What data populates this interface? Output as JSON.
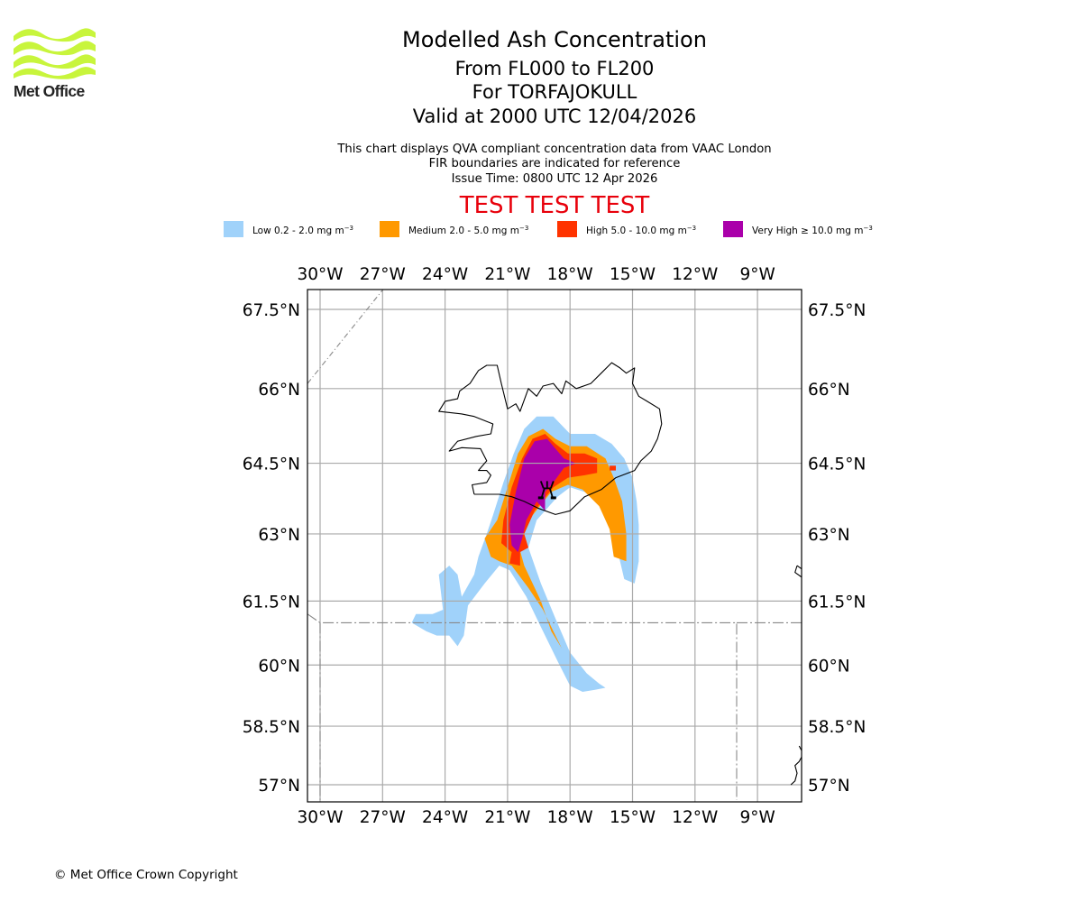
{
  "logo": {
    "name": "Met Office",
    "color": "#c8f53c"
  },
  "header": {
    "title": "Modelled Ash Concentration",
    "flight_levels": "From FL000 to FL200",
    "volcano": "For TORFAJOKULL",
    "valid_time": "Valid at 2000 UTC 12/04/2026",
    "note_1": "This chart displays QVA compliant concentration data from VAAC London",
    "note_2": "FIR boundaries are indicated for reference",
    "issue_time": "Issue Time: 0800 UTC 12 Apr 2026",
    "test_banner": "TEST TEST TEST",
    "test_color": "#e8000b"
  },
  "legend": [
    {
      "label": "Low 0.2 - 2.0 mg m",
      "unit_exp": "−3",
      "color": "#a0d2fa"
    },
    {
      "label": "Medium 2.0 - 5.0 mg m",
      "unit_exp": "−3",
      "color": "#ff9900"
    },
    {
      "label": "High 5.0 - 10.0 mg m",
      "unit_exp": "−3",
      "color": "#ff3300"
    },
    {
      "label": "Very High  ≥  10.0 mg m",
      "unit_exp": "−3",
      "color": "#aa00aa"
    }
  ],
  "chart_data": {
    "type": "map",
    "title": "Modelled Ash Concentration",
    "projection": "mercator",
    "extent": {
      "lon": [
        -30.6,
        -6.9
      ],
      "lat": [
        56.6,
        67.9
      ]
    },
    "lon_ticks": [
      -30,
      -27,
      -24,
      -21,
      -18,
      -15,
      -12,
      -9
    ],
    "lon_tick_labels": [
      "30°W",
      "27°W",
      "24°W",
      "21°W",
      "18°W",
      "15°W",
      "12°W",
      "9°W"
    ],
    "lat_ticks": [
      67.5,
      66,
      64.5,
      63,
      61.5,
      60,
      58.5,
      57
    ],
    "lat_tick_labels": [
      "67.5°N",
      "66°N",
      "64.5°N",
      "63°N",
      "61.5°N",
      "60°N",
      "58.5°N",
      "57°N"
    ],
    "grid": true,
    "volcano": {
      "name": "TORFAJOKULL",
      "lon": -19.1,
      "lat": 63.9
    },
    "fir_boundaries": [
      {
        "name": "diagonal-nw",
        "points": [
          [
            -30.6,
            66.1
          ],
          [
            -26.9,
            67.9
          ]
        ]
      },
      {
        "name": "southern-box",
        "points": [
          [
            -30.6,
            61.2
          ],
          [
            -30.0,
            61.0
          ],
          [
            -10.0,
            61.0
          ],
          [
            -10.0,
            56.6
          ]
        ]
      },
      {
        "name": "southern-box-west",
        "points": [
          [
            -30.0,
            61.0
          ],
          [
            -30.0,
            56.6
          ]
        ]
      },
      {
        "name": "east-line",
        "points": [
          [
            -10.0,
            61.0
          ],
          [
            -6.9,
            61.0
          ]
        ]
      }
    ],
    "ash_layers": [
      {
        "level": "Low",
        "range": "0.2 - 2.0",
        "polygons": [
          [
            [
              -21.7,
              63.4
            ],
            [
              -21.2,
              64.1
            ],
            [
              -20.7,
              64.7
            ],
            [
              -20.2,
              65.2
            ],
            [
              -19.6,
              65.45
            ],
            [
              -18.8,
              65.45
            ],
            [
              -18.0,
              65.1
            ],
            [
              -16.8,
              65.1
            ],
            [
              -16.0,
              64.9
            ],
            [
              -15.4,
              64.6
            ],
            [
              -15.0,
              64.2
            ],
            [
              -14.8,
              63.7
            ],
            [
              -14.7,
              63.2
            ],
            [
              -14.7,
              62.4
            ],
            [
              -14.9,
              61.9
            ],
            [
              -15.4,
              62.0
            ],
            [
              -15.7,
              62.6
            ],
            [
              -16.0,
              63.1
            ],
            [
              -16.5,
              63.6
            ],
            [
              -17.3,
              63.9
            ],
            [
              -18.0,
              64.0
            ],
            [
              -18.6,
              63.8
            ],
            [
              -19.6,
              63.3
            ],
            [
              -20.0,
              62.7
            ],
            [
              -19.4,
              61.9
            ],
            [
              -18.7,
              61.1
            ],
            [
              -18.0,
              60.3
            ],
            [
              -17.2,
              59.8
            ],
            [
              -16.6,
              59.55
            ],
            [
              -16.3,
              59.45
            ],
            [
              -16.8,
              59.4
            ],
            [
              -17.4,
              59.35
            ],
            [
              -18.0,
              59.5
            ],
            [
              -18.6,
              60.1
            ],
            [
              -19.4,
              60.9
            ],
            [
              -20.1,
              61.6
            ],
            [
              -20.9,
              62.2
            ],
            [
              -21.4,
              62.3
            ],
            [
              -22.1,
              61.9
            ],
            [
              -22.9,
              61.4
            ],
            [
              -23.1,
              60.7
            ],
            [
              -23.4,
              60.45
            ],
            [
              -23.8,
              60.7
            ],
            [
              -24.4,
              60.7
            ],
            [
              -24.9,
              60.8
            ],
            [
              -25.6,
              61.0
            ],
            [
              -25.4,
              61.2
            ],
            [
              -24.6,
              61.2
            ],
            [
              -24.1,
              61.3
            ],
            [
              -24.3,
              62.1
            ],
            [
              -23.8,
              62.3
            ],
            [
              -23.4,
              62.1
            ],
            [
              -23.2,
              61.6
            ],
            [
              -22.6,
              62.1
            ],
            [
              -22.4,
              62.5
            ],
            [
              -22.0,
              63.0
            ]
          ]
        ]
      },
      {
        "level": "Medium",
        "range": "2.0 - 5.0",
        "polygons": [
          [
            [
              -21.5,
              63.3
            ],
            [
              -21.0,
              64.0
            ],
            [
              -20.5,
              64.7
            ],
            [
              -20.0,
              65.05
            ],
            [
              -19.3,
              65.2
            ],
            [
              -18.7,
              65.0
            ],
            [
              -18.0,
              64.85
            ],
            [
              -17.2,
              64.85
            ],
            [
              -16.3,
              64.6
            ],
            [
              -15.9,
              64.2
            ],
            [
              -15.5,
              63.7
            ],
            [
              -15.3,
              63.0
            ],
            [
              -15.3,
              62.4
            ],
            [
              -15.9,
              62.5
            ],
            [
              -16.1,
              63.1
            ],
            [
              -16.6,
              63.6
            ],
            [
              -17.4,
              63.95
            ],
            [
              -18.1,
              64.05
            ],
            [
              -18.9,
              63.9
            ],
            [
              -19.8,
              63.4
            ],
            [
              -20.5,
              62.8
            ],
            [
              -20.2,
              62.3
            ],
            [
              -19.4,
              61.5
            ],
            [
              -18.9,
              60.8
            ],
            [
              -18.4,
              60.4
            ],
            [
              -18.8,
              60.8
            ],
            [
              -19.3,
              61.3
            ],
            [
              -20.0,
              61.8
            ],
            [
              -20.8,
              62.3
            ],
            [
              -21.4,
              62.4
            ],
            [
              -21.8,
              62.5
            ],
            [
              -22.1,
              62.9
            ]
          ]
        ]
      },
      {
        "level": "High",
        "range": "5.0 - 10.0",
        "polygons": [
          [
            [
              -21.2,
              63.3
            ],
            [
              -20.8,
              64.0
            ],
            [
              -20.3,
              64.6
            ],
            [
              -19.8,
              65.0
            ],
            [
              -19.2,
              65.1
            ],
            [
              -18.7,
              64.9
            ],
            [
              -18.1,
              64.7
            ],
            [
              -17.3,
              64.7
            ],
            [
              -16.7,
              64.6
            ],
            [
              -16.7,
              64.3
            ],
            [
              -17.3,
              64.25
            ],
            [
              -18.1,
              64.2
            ],
            [
              -18.8,
              64.0
            ],
            [
              -19.7,
              63.5
            ],
            [
              -20.2,
              63.0
            ],
            [
              -20.0,
              62.7
            ],
            [
              -20.4,
              62.6
            ],
            [
              -20.4,
              62.3
            ],
            [
              -20.9,
              62.35
            ],
            [
              -20.8,
              62.6
            ],
            [
              -21.3,
              62.8
            ]
          ],
          [
            [
              -16.1,
              64.45
            ],
            [
              -15.8,
              64.45
            ],
            [
              -15.8,
              64.35
            ],
            [
              -16.1,
              64.35
            ]
          ]
        ]
      },
      {
        "level": "Very High",
        "range": ">= 10.0",
        "polygons": [
          [
            [
              -20.9,
              63.2
            ],
            [
              -20.6,
              63.9
            ],
            [
              -20.2,
              64.6
            ],
            [
              -19.7,
              64.95
            ],
            [
              -19.1,
              65.0
            ],
            [
              -18.7,
              64.8
            ],
            [
              -18.3,
              64.6
            ],
            [
              -17.7,
              64.5
            ],
            [
              -18.3,
              64.4
            ],
            [
              -18.8,
              64.1
            ],
            [
              -19.2,
              63.9
            ],
            [
              -19.2,
              63.5
            ],
            [
              -19.6,
              63.7
            ],
            [
              -20.1,
              63.3
            ],
            [
              -20.3,
              62.9
            ],
            [
              -20.5,
              62.6
            ],
            [
              -20.8,
              62.75
            ]
          ]
        ]
      }
    ],
    "coastlines": [
      {
        "name": "Iceland",
        "points": [
          [
            -22.6,
            63.85
          ],
          [
            -22.7,
            64.05
          ],
          [
            -22.0,
            64.1
          ],
          [
            -21.8,
            64.25
          ],
          [
            -22.0,
            64.35
          ],
          [
            -22.4,
            64.35
          ],
          [
            -22.0,
            64.55
          ],
          [
            -22.3,
            64.8
          ],
          [
            -23.2,
            64.82
          ],
          [
            -23.8,
            64.75
          ],
          [
            -23.4,
            64.95
          ],
          [
            -22.5,
            65.05
          ],
          [
            -21.8,
            65.1
          ],
          [
            -21.7,
            65.3
          ],
          [
            -22.6,
            65.45
          ],
          [
            -23.2,
            65.5
          ],
          [
            -24.3,
            65.55
          ],
          [
            -24.0,
            65.75
          ],
          [
            -23.4,
            65.8
          ],
          [
            -23.3,
            65.95
          ],
          [
            -22.8,
            66.1
          ],
          [
            -22.4,
            66.35
          ],
          [
            -22.0,
            66.45
          ],
          [
            -21.5,
            66.45
          ],
          [
            -21.3,
            66.1
          ],
          [
            -21.0,
            65.6
          ],
          [
            -20.6,
            65.7
          ],
          [
            -20.4,
            65.55
          ],
          [
            -20.0,
            66.0
          ],
          [
            -19.6,
            65.85
          ],
          [
            -19.3,
            66.05
          ],
          [
            -18.8,
            66.1
          ],
          [
            -18.4,
            65.9
          ],
          [
            -18.2,
            66.15
          ],
          [
            -17.7,
            66.0
          ],
          [
            -17.0,
            66.1
          ],
          [
            -16.5,
            66.3
          ],
          [
            -16.0,
            66.5
          ],
          [
            -15.6,
            66.4
          ],
          [
            -15.3,
            66.3
          ],
          [
            -14.9,
            66.4
          ],
          [
            -15.0,
            66.1
          ],
          [
            -14.7,
            65.85
          ],
          [
            -14.3,
            65.75
          ],
          [
            -13.7,
            65.6
          ],
          [
            -13.6,
            65.3
          ],
          [
            -13.8,
            65.0
          ],
          [
            -14.1,
            64.75
          ],
          [
            -14.6,
            64.55
          ],
          [
            -14.9,
            64.35
          ],
          [
            -15.8,
            64.2
          ],
          [
            -16.5,
            63.95
          ],
          [
            -17.3,
            63.8
          ],
          [
            -18.0,
            63.5
          ],
          [
            -18.7,
            63.42
          ],
          [
            -19.5,
            63.55
          ],
          [
            -20.2,
            63.7
          ],
          [
            -20.8,
            63.8
          ],
          [
            -21.4,
            63.85
          ],
          [
            -22.0,
            63.85
          ],
          [
            -22.6,
            63.85
          ]
        ]
      },
      {
        "name": "Faroe",
        "points": [
          [
            -7.1,
            62.3
          ],
          [
            -6.8,
            62.2
          ],
          [
            -6.9,
            62.05
          ],
          [
            -7.2,
            62.15
          ],
          [
            -7.1,
            62.3
          ]
        ]
      },
      {
        "name": "Hebrides",
        "points": [
          [
            -7.0,
            58.0
          ],
          [
            -6.8,
            57.8
          ],
          [
            -7.0,
            57.6
          ],
          [
            -7.2,
            57.5
          ],
          [
            -7.1,
            57.3
          ],
          [
            -7.2,
            57.1
          ],
          [
            -7.4,
            57.0
          ]
        ]
      }
    ]
  },
  "footer": {
    "copyright": "© Met Office Crown Copyright"
  }
}
